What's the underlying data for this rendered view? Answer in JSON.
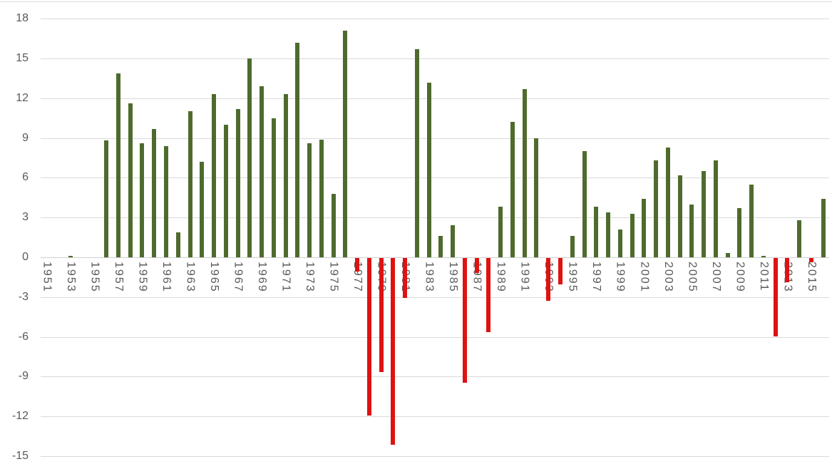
{
  "chart_data": {
    "type": "bar",
    "title": "",
    "xlabel": "",
    "ylabel": "",
    "grid": true,
    "legend": "none",
    "ylim": [
      -15,
      18
    ],
    "ytick_step": 3,
    "yticks": [
      18,
      15,
      12,
      9,
      6,
      3,
      0,
      -3,
      -6,
      -9,
      -12,
      -15
    ],
    "x": [
      1951,
      1952,
      1953,
      1954,
      1955,
      1956,
      1957,
      1958,
      1959,
      1960,
      1961,
      1962,
      1963,
      1964,
      1965,
      1966,
      1967,
      1968,
      1969,
      1970,
      1971,
      1972,
      1973,
      1974,
      1975,
      1976,
      1977,
      1978,
      1979,
      1980,
      1981,
      1982,
      1983,
      1984,
      1985,
      1986,
      1987,
      1988,
      1989,
      1990,
      1991,
      1992,
      1993,
      1994,
      1995,
      1996,
      1997,
      1998,
      1999,
      2000,
      2001,
      2002,
      2003,
      2004,
      2005,
      2006,
      2007,
      2008,
      2009,
      2010,
      2011,
      2012,
      2013,
      2014,
      2015,
      2016
    ],
    "values": [
      null,
      null,
      0.1,
      null,
      null,
      8.8,
      13.9,
      11.6,
      8.6,
      9.7,
      8.4,
      1.9,
      11.0,
      7.2,
      12.3,
      10.0,
      11.2,
      15.0,
      12.9,
      10.5,
      12.3,
      16.2,
      8.6,
      8.9,
      4.8,
      17.1,
      -1.0,
      -11.9,
      -8.6,
      -14.1,
      -3.0,
      15.7,
      13.2,
      1.6,
      2.4,
      -9.4,
      -1.1,
      -5.6,
      3.8,
      10.2,
      12.7,
      9.0,
      -3.2,
      -2.0,
      1.6,
      8.0,
      3.8,
      3.4,
      2.1,
      3.3,
      4.4,
      7.3,
      8.3,
      6.2,
      4.0,
      6.5,
      7.3,
      0.3,
      3.7,
      5.5,
      0.1,
      -5.9,
      -1.8,
      2.8,
      -0.3,
      4.4
    ],
    "xtick_labels": [
      "1951",
      "1953",
      "1955",
      "1957",
      "1959",
      "1961",
      "1963",
      "1965",
      "1967",
      "1969",
      "1971",
      "1973",
      "1975",
      "1977",
      "1979",
      "1981",
      "1983",
      "1985",
      "1987",
      "1989",
      "1991",
      "1993",
      "1995",
      "1997",
      "1999",
      "2001",
      "2003",
      "2005",
      "2007",
      "2009",
      "2011",
      "2013",
      "2015"
    ],
    "colors": {
      "positive": "#4e6b2d",
      "negative": "#df1212",
      "gridline": "#d9d9d9",
      "zero_line": "#cfcfcf",
      "axis_labels": "#595959",
      "background": "#ffffff"
    }
  }
}
